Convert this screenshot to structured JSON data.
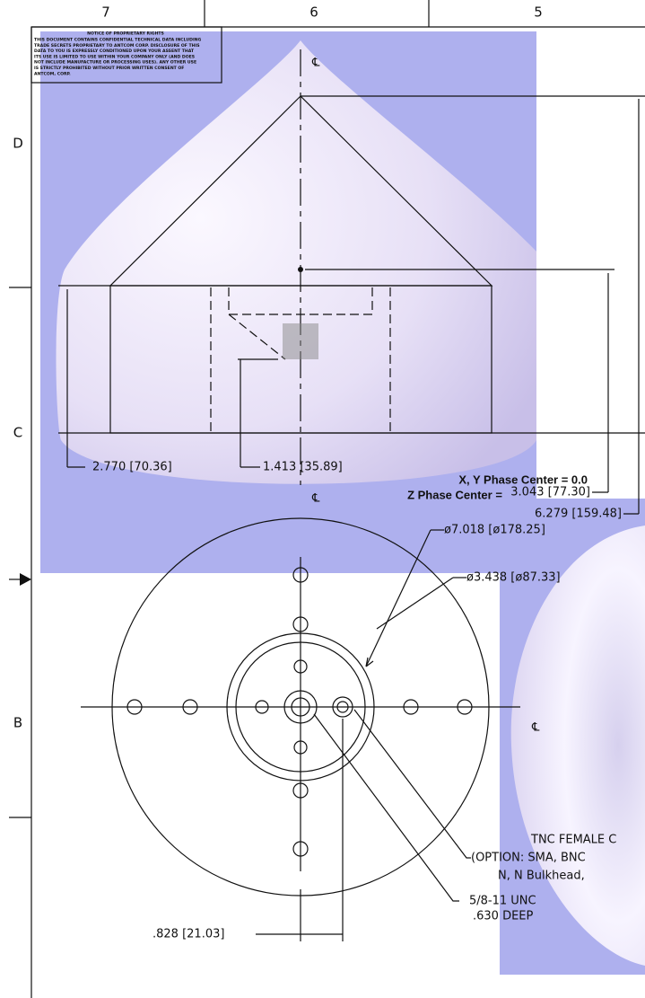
{
  "header": {
    "columns": [
      "7",
      "6",
      "5"
    ],
    "rows": [
      "D",
      "C",
      "B"
    ]
  },
  "notice": {
    "title": "NOTICE OF PROPRIETARY RIGHTS",
    "lines": [
      "THIS DOCUMENT CONTAINS CONFIDENTIAL TECHNICAL DATA INCLUDING",
      "TRADE SECRETS PROPRIETARY TO ANTCOM CORP. DISCLOSURE OF THIS",
      "DATA TO YOU IS EXPRESSLY CONDITIONED UPON YOUR ASSENT THAT",
      "ITS USE IS LIMITED TO USE WITHIN YOUR COMPANY ONLY (AND DOES",
      "NOT INCLUDE MANUFACTURE OR PROCESSING USES). ANY OTHER USE",
      "IS STRICTLY PROHIBITED WITHOUT PRIOR WRITTEN CONSENT OF",
      "ANTCOM, CORP."
    ]
  },
  "centerline": "℄",
  "side_view": {
    "dim_height_skirt": "2.770 [70.36]",
    "dim_mount": "1.413 [35.89]",
    "phase_xy": "X, Y Phase Center = 0.0",
    "phase_z": "Z Phase Center =",
    "dim_phase_z": "3.043 [77.30]",
    "dim_total": "6.279 [159.48]"
  },
  "bottom_view": {
    "dim_outer": "ø7.018 [ø178.25]",
    "dim_inner": "ø3.438 [ø87.33]",
    "connector": [
      "TNC FEMALE C",
      "(OPTION: SMA, BNC",
      "N, N Bulkhead,"
    ],
    "thread": [
      "5/8-11 UNC",
      ".630 DEEP"
    ],
    "dim_offset": ".828 [21.03]"
  }
}
